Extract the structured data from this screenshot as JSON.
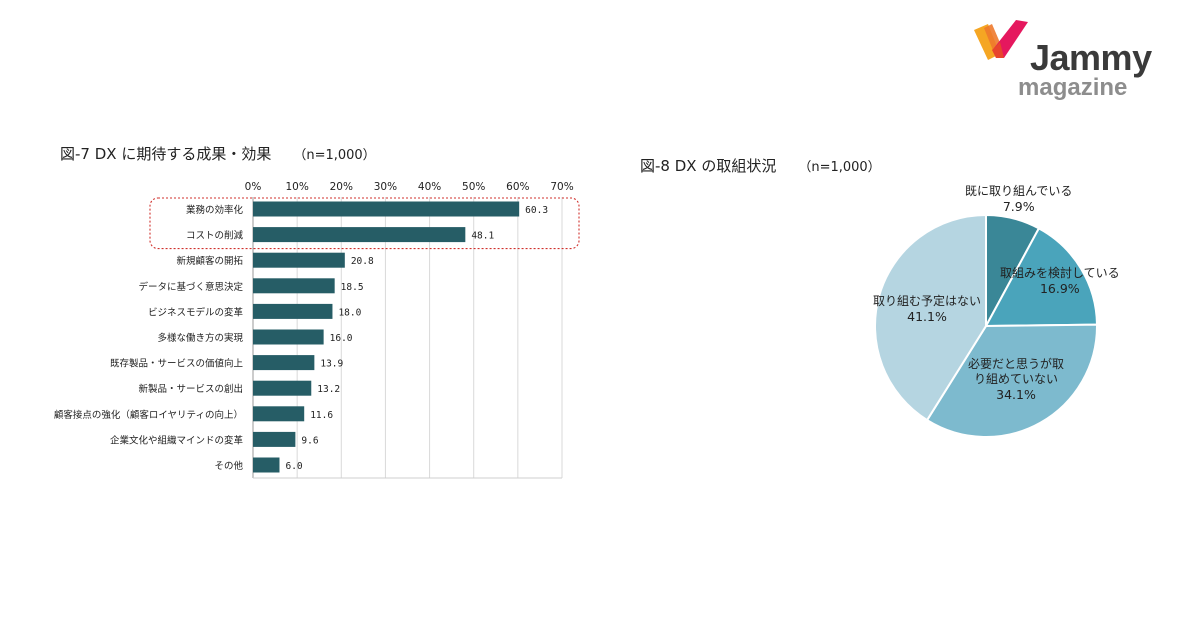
{
  "brand": {
    "name": "Jammy",
    "sub": "magazine",
    "logo_colors": [
      "#f5a623",
      "#e8452c",
      "#e5185e"
    ]
  },
  "fig7": {
    "title": "図-7 DX に期待する成果・効果",
    "n": "（n=1,000）"
  },
  "fig8": {
    "title": "図-8 DX の取組状況",
    "n": "（n=1,000）"
  },
  "chart_data": [
    {
      "type": "bar",
      "orientation": "horizontal",
      "title": "図-7 DX に期待する成果・効果",
      "categories": [
        "業務の効率化",
        "コストの削減",
        "新規顧客の開拓",
        "データに基づく意思決定",
        "ビジネスモデルの変革",
        "多様な働き方の実現",
        "既存製品・サービスの価値向上",
        "新製品・サービスの創出",
        "顧客接点の強化（顧客ロイヤリティの向上）",
        "企業文化や組織マインドの変革",
        "その他"
      ],
      "values": [
        60.3,
        48.1,
        20.8,
        18.5,
        18.0,
        16.0,
        13.9,
        13.2,
        11.6,
        9.6,
        6.0
      ],
      "value_labels": [
        "60.3",
        "48.1",
        "20.8",
        "18.5",
        "18.0",
        "16.0",
        "13.9",
        "13.2",
        "11.6",
        "9.6",
        "6.0"
      ],
      "xlim": [
        0,
        70
      ],
      "xticks": [
        "0%",
        "10%",
        "20%",
        "30%",
        "40%",
        "50%",
        "60%",
        "70%"
      ],
      "grid": true,
      "bar_color": "#265d66",
      "highlight": {
        "categories": [
          "業務の効率化",
          "コストの削減"
        ],
        "color": "#d0312d"
      }
    },
    {
      "type": "pie",
      "title": "図-8 DX の取組状況",
      "slices": [
        {
          "label": "既に取り組んでいる",
          "value": 7.9,
          "pct": "7.9%",
          "color": "#3a8797"
        },
        {
          "label": "取組みを検討している",
          "value": 16.9,
          "pct": "16.9%",
          "color": "#4aa4bb"
        },
        {
          "label": "必要だと思うが取り組めていない",
          "label_lines": [
            "必要だと思うが取",
            "り組めていない"
          ],
          "value": 34.1,
          "pct": "34.1%",
          "color": "#7dbace"
        },
        {
          "label": "取り組む予定はない",
          "value": 41.1,
          "pct": "41.1%",
          "color": "#b5d5e1"
        }
      ],
      "start_angle": "12 o'clock",
      "direction": "clockwise"
    }
  ]
}
